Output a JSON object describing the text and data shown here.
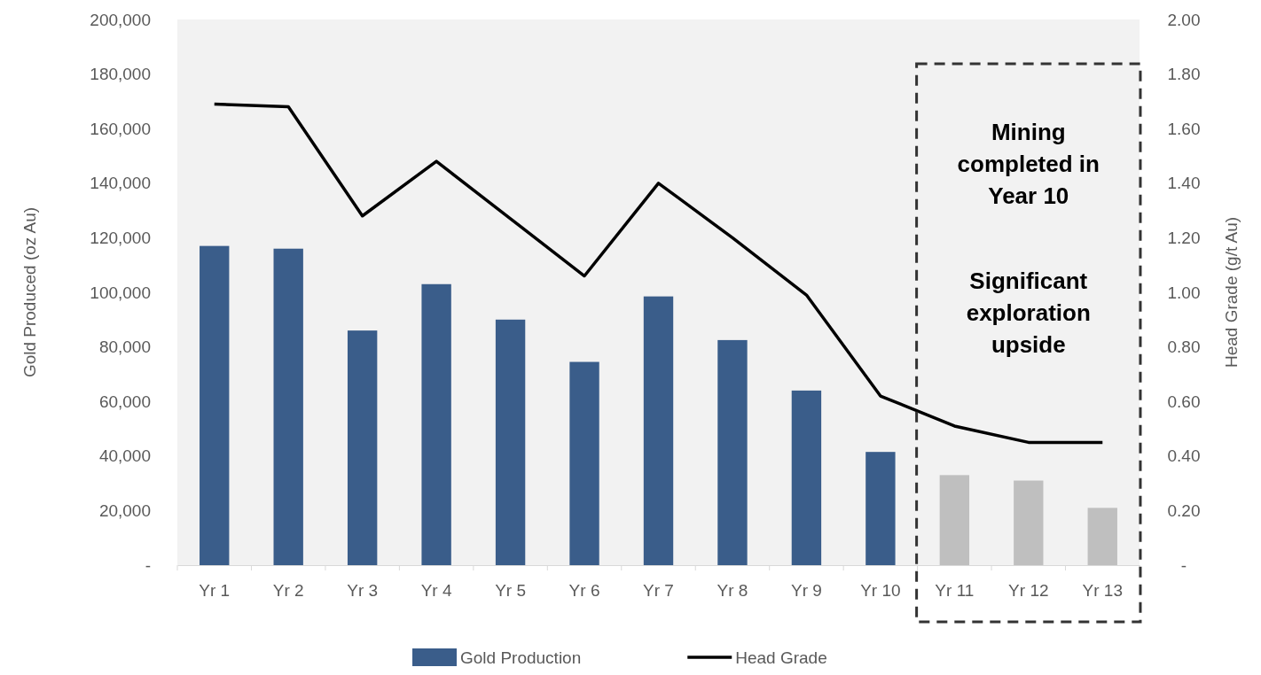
{
  "chart_data": {
    "type": "bar",
    "ylabel": "Gold Produced (oz Au)",
    "y2label": "Head Grade (g/t Au)",
    "categories": [
      "Yr 1",
      "Yr 2",
      "Yr 3",
      "Yr 4",
      "Yr 5",
      "Yr 6",
      "Yr 7",
      "Yr 8",
      "Yr 9",
      "Yr 10",
      "Yr 11",
      "Yr 12",
      "Yr 13"
    ],
    "series": [
      {
        "name": "Gold Production",
        "color": "#3a5d8a",
        "colors": [
          "#3a5d8a",
          "#3a5d8a",
          "#3a5d8a",
          "#3a5d8a",
          "#3a5d8a",
          "#3a5d8a",
          "#3a5d8a",
          "#3a5d8a",
          "#3a5d8a",
          "#3a5d8a",
          "#bfbfbf",
          "#bfbfbf",
          "#bfbfbf"
        ],
        "values": [
          117000,
          116000,
          86000,
          103000,
          90000,
          74500,
          98500,
          82500,
          64000,
          41500,
          33000,
          31000,
          21000
        ]
      },
      {
        "name": "Head Grade",
        "type": "line",
        "axis": "y2",
        "color": "#000000",
        "values": [
          1.69,
          1.68,
          1.28,
          1.48,
          1.27,
          1.06,
          1.4,
          1.2,
          0.99,
          0.62,
          0.51,
          0.45,
          0.45
        ]
      }
    ],
    "ylim": [
      0,
      200000
    ],
    "yticks": [
      {
        "value": 0,
        "label": "-"
      },
      {
        "value": 20000,
        "label": "20,000"
      },
      {
        "value": 40000,
        "label": "40,000"
      },
      {
        "value": 60000,
        "label": "60,000"
      },
      {
        "value": 80000,
        "label": "80,000"
      },
      {
        "value": 100000,
        "label": "100,000"
      },
      {
        "value": 120000,
        "label": "120,000"
      },
      {
        "value": 140000,
        "label": "140,000"
      },
      {
        "value": 160000,
        "label": "160,000"
      },
      {
        "value": 180000,
        "label": "180,000"
      },
      {
        "value": 200000,
        "label": "200,000"
      }
    ],
    "y2lim": [
      0,
      2
    ],
    "y2ticks": [
      {
        "value": 0,
        "label": "-"
      },
      {
        "value": 0.2,
        "label": "0.20"
      },
      {
        "value": 0.4,
        "label": "0.40"
      },
      {
        "value": 0.6,
        "label": "0.60"
      },
      {
        "value": 0.8,
        "label": "0.80"
      },
      {
        "value": 1,
        "label": "1.00"
      },
      {
        "value": 1.2,
        "label": "1.20"
      },
      {
        "value": 1.4,
        "label": "1.40"
      },
      {
        "value": 1.6,
        "label": "1.60"
      },
      {
        "value": 1.8,
        "label": "1.80"
      },
      {
        "value": 2,
        "label": "2.00"
      }
    ],
    "annotations": [
      "Mining completed in Year 10",
      "Significant exploration upside"
    ],
    "grid": false,
    "legend": "bottom",
    "marker": "none",
    "line_style": "solid"
  }
}
